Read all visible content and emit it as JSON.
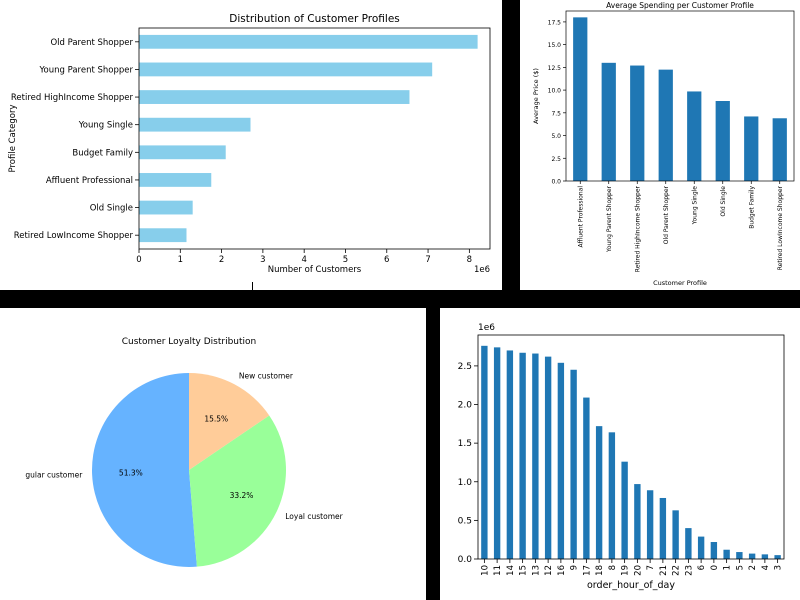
{
  "chart_data": [
    {
      "type": "bar",
      "orientation": "horizontal",
      "title": "Distribution of Customer Profiles",
      "xlabel": "Number of Customers",
      "ylabel": "Profile Category",
      "x_offset_label": "1e6",
      "xlim": [
        0,
        8.5
      ],
      "xticks": [
        0,
        1,
        2,
        3,
        4,
        5,
        6,
        7,
        8
      ],
      "categories": [
        "Old Parent Shopper",
        "Young Parent Shopper",
        "Retired HighIncome Shopper",
        "Young Single",
        "Budget Family",
        "Affluent Professional",
        "Old Single",
        "Retired LowIncome Shopper"
      ],
      "values": [
        8.2,
        7.1,
        6.55,
        2.7,
        2.1,
        1.75,
        1.3,
        1.15
      ],
      "color": "#87ceeb"
    },
    {
      "type": "bar",
      "title": "Average Spending per Customer Profile",
      "xlabel": "Customer Profile",
      "ylabel": "Average Price ($)",
      "ylim": [
        0,
        18.7
      ],
      "yticks": [
        "0.0",
        "2.5",
        "5.0",
        "7.5",
        "10.0",
        "12.5",
        "15.0",
        "17.5"
      ],
      "categories": [
        "Affluent Professional",
        "Young Parent Shopper",
        "Retired HighIncome Shopper",
        "Old Parent Shopper",
        "Young Single",
        "Old Single",
        "Budget Family",
        "Retired LowIncome Shopper"
      ],
      "values": [
        18.0,
        13.0,
        12.7,
        12.25,
        9.85,
        8.8,
        7.1,
        6.9
      ],
      "color": "#1f77b4"
    },
    {
      "type": "pie",
      "title": "Customer Loyalty Distribution",
      "labels": [
        "gular customer",
        "Loyal customer",
        "New customer"
      ],
      "values": [
        51.3,
        33.2,
        15.5
      ],
      "pct_labels": [
        "51.3%",
        "33.2%",
        "15.5%"
      ],
      "colors": [
        "#66b3ff",
        "#99ff99",
        "#ffcc99"
      ]
    },
    {
      "type": "bar",
      "title": "",
      "xlabel": "order_hour_of_day",
      "ylabel": "",
      "y_offset_label": "1e6",
      "ylim": [
        0,
        2.9
      ],
      "yticks": [
        "0.0",
        "0.5",
        "1.0",
        "1.5",
        "2.0",
        "2.5"
      ],
      "categories": [
        "10",
        "11",
        "14",
        "15",
        "13",
        "12",
        "16",
        "9",
        "17",
        "18",
        "8",
        "19",
        "20",
        "7",
        "21",
        "22",
        "23",
        "6",
        "0",
        "1",
        "5",
        "2",
        "4",
        "3"
      ],
      "values": [
        2.76,
        2.74,
        2.7,
        2.67,
        2.66,
        2.62,
        2.54,
        2.45,
        2.09,
        1.72,
        1.64,
        1.26,
        0.97,
        0.89,
        0.79,
        0.63,
        0.4,
        0.29,
        0.22,
        0.12,
        0.09,
        0.07,
        0.06,
        0.05
      ],
      "color": "#1f77b4"
    }
  ]
}
